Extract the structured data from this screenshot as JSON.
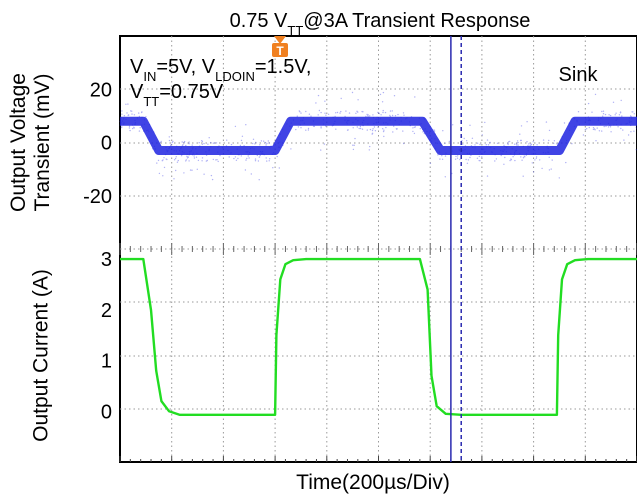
{
  "chart_data": {
    "type": "line",
    "title_parts": {
      "pre": "0.75 V",
      "sub": "TT",
      "post": "@3A Transient Response"
    },
    "xlabel": "Time(200µs/Div)",
    "x_units": "µs",
    "xlim": [
      0,
      2000
    ],
    "x_divisions": 10,
    "grid": true,
    "panels": [
      {
        "name": "voltage",
        "ylabel_lines": [
          "Output Voltage",
          "Transient (mV)"
        ],
        "ylim": [
          -40,
          40
        ],
        "ticks": [
          20,
          0,
          -20
        ],
        "tick_labels": [
          "20",
          "0",
          "-20"
        ],
        "series": [
          {
            "color": "#1f23e0",
            "x": [
              0,
              90,
              150,
              600,
              660,
              1170,
              1240,
              1700,
              1760,
              2000
            ],
            "values": [
              8,
              8,
              -3,
              -3,
              8,
              8,
              -3,
              -3,
              8,
              8
            ]
          }
        ]
      },
      {
        "name": "current",
        "ylabel_lines": [
          "Output Current (A)"
        ],
        "ylim": [
          -1,
          3.2
        ],
        "ticks": [
          3,
          2,
          1,
          0
        ],
        "tick_labels": [
          "3",
          "2",
          "1",
          "0"
        ],
        "series": [
          {
            "color": "#22dd22",
            "x": [
              0,
              90,
              120,
              140,
              160,
              190,
              230,
              600,
              605,
              620,
              640,
              670,
              720,
              1160,
              1190,
              1205,
              1225,
              1260,
              1320,
              1690,
              1695,
              1710,
              1730,
              1760,
              1810,
              2000
            ],
            "values": [
              3,
              3,
              2,
              0.8,
              0.2,
              0.0,
              -0.07,
              -0.07,
              1.5,
              2.6,
              2.9,
              2.98,
              3,
              3,
              2.4,
              0.7,
              0.1,
              -0.05,
              -0.07,
              -0.07,
              1.5,
              2.6,
              2.9,
              2.98,
              3,
              3
            ]
          }
        ]
      }
    ],
    "annotations": {
      "conditions_line1": [
        {
          "t": "V"
        },
        {
          "t": "IN",
          "sub": true
        },
        {
          "t": "=5V, V"
        },
        {
          "t": "LDOIN",
          "sub": true
        },
        {
          "t": "=1.5V,"
        }
      ],
      "conditions_line2": [
        {
          "t": "V"
        },
        {
          "t": "TT",
          "sub": true
        },
        {
          "t": "=0.75V"
        }
      ],
      "mode": "Sink",
      "trigger_marker": "T"
    },
    "cursors": [
      {
        "style": "solid",
        "x": 1280,
        "color": "#2a2ab0"
      },
      {
        "style": "dashed",
        "x": 1320,
        "color": "#2a2ab0"
      }
    ]
  }
}
